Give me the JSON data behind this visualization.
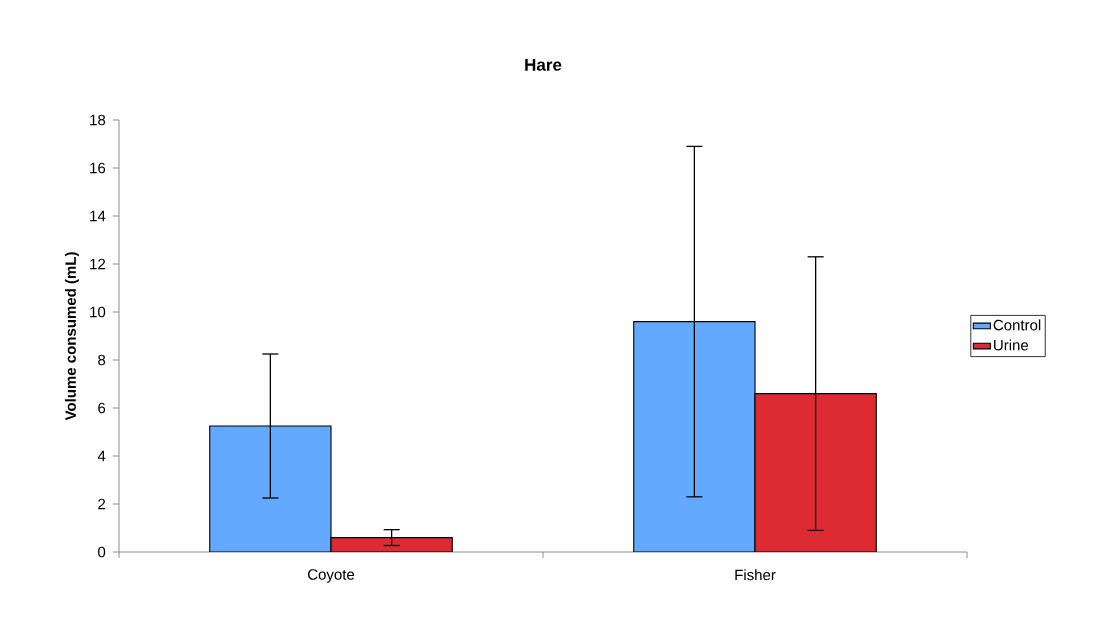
{
  "chart_data": {
    "type": "bar",
    "title": "Hare",
    "ylabel": "Volume consumed (mL)",
    "categories": [
      "Coyote",
      "Fisher"
    ],
    "series": [
      {
        "name": "Control",
        "color": "#63a9ff",
        "values": [
          5.25,
          9.6
        ],
        "errors": [
          3.0,
          7.3
        ]
      },
      {
        "name": "Urine",
        "color": "#dc2b33",
        "values": [
          0.6,
          6.6
        ],
        "errors": [
          0.33,
          5.7
        ]
      }
    ],
    "ylim": [
      0,
      18
    ],
    "yticks": [
      0,
      2,
      4,
      6,
      8,
      10,
      12,
      14,
      16,
      18
    ],
    "grid": false,
    "legend": "right"
  }
}
